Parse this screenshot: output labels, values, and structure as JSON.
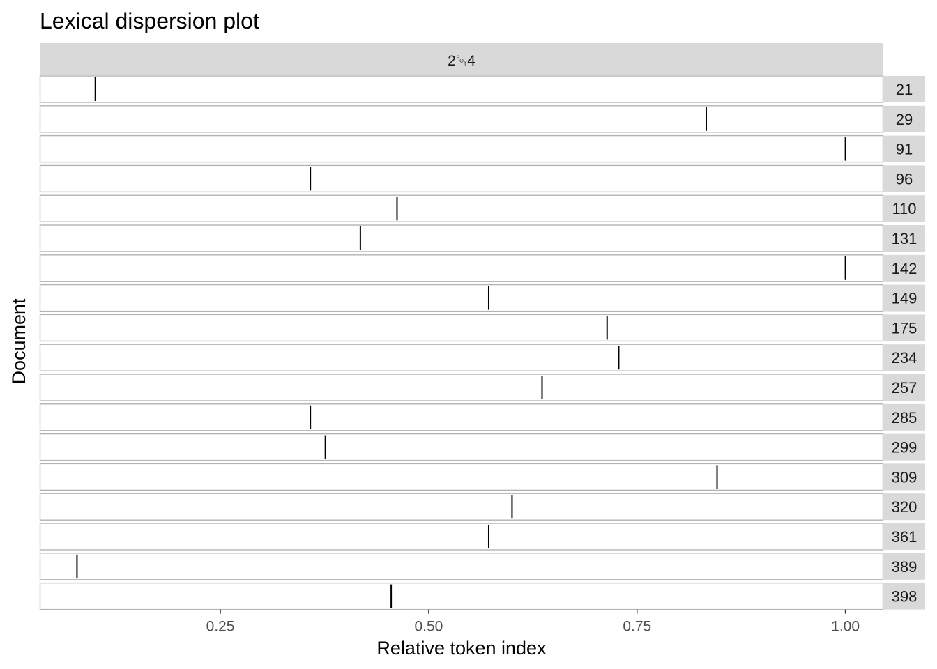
{
  "chart_data": {
    "type": "dispersion",
    "title": "Lexical dispersion plot",
    "facet_label": "2␄4",
    "xlabel": "Relative token index",
    "ylabel": "Document",
    "xlim": [
      0.0333,
      1.0455
    ],
    "x_ticks": [
      0.25,
      0.5,
      0.75,
      1.0
    ],
    "x_tick_labels": [
      "0.25",
      "0.50",
      "0.75",
      "1.00"
    ],
    "grid": false,
    "documents": [
      {
        "name": "21",
        "x": 0.1
      },
      {
        "name": "29",
        "x": 0.833
      },
      {
        "name": "91",
        "x": 1.0
      },
      {
        "name": "96",
        "x": 0.358
      },
      {
        "name": "110",
        "x": 0.462
      },
      {
        "name": "131",
        "x": 0.418
      },
      {
        "name": "142",
        "x": 1.0
      },
      {
        "name": "149",
        "x": 0.572
      },
      {
        "name": "175",
        "x": 0.714
      },
      {
        "name": "234",
        "x": 0.728
      },
      {
        "name": "257",
        "x": 0.636
      },
      {
        "name": "285",
        "x": 0.358
      },
      {
        "name": "299",
        "x": 0.376
      },
      {
        "name": "309",
        "x": 0.846
      },
      {
        "name": "320",
        "x": 0.6
      },
      {
        "name": "361",
        "x": 0.572
      },
      {
        "name": "389",
        "x": 0.078
      },
      {
        "name": "398",
        "x": 0.455
      }
    ]
  }
}
